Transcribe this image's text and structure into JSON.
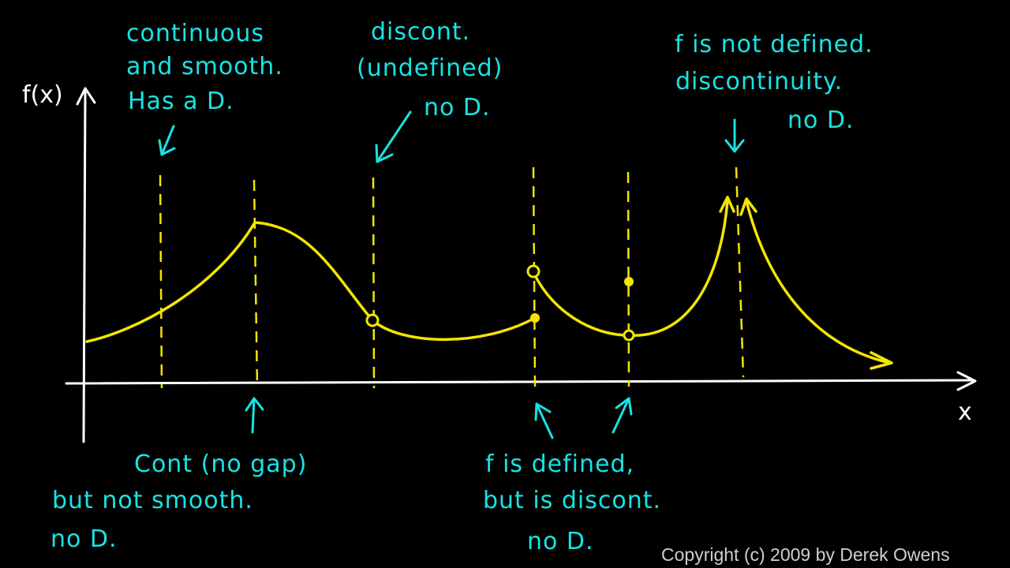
{
  "axes": {
    "y_label": "f(x)",
    "x_label": "x"
  },
  "annotations": {
    "smooth": [
      "continuous",
      "and smooth.",
      "Has a D."
    ],
    "corner": [
      "Cont (no gap)",
      "but not smooth.",
      "no D."
    ],
    "hole": [
      "discont.",
      "(undefined)",
      "no D."
    ],
    "defined_discont": [
      "f is defined,",
      "but is discont.",
      "no D."
    ],
    "asymptote": [
      "f is not defined.",
      "discontinuity.",
      "no D."
    ]
  },
  "copyright": "Copyright (c) 2009 by Derek Owens",
  "colors": {
    "background": "#000000",
    "curve": "#f2e600",
    "annotation": "#19e3e3",
    "axis": "#ffffff"
  }
}
